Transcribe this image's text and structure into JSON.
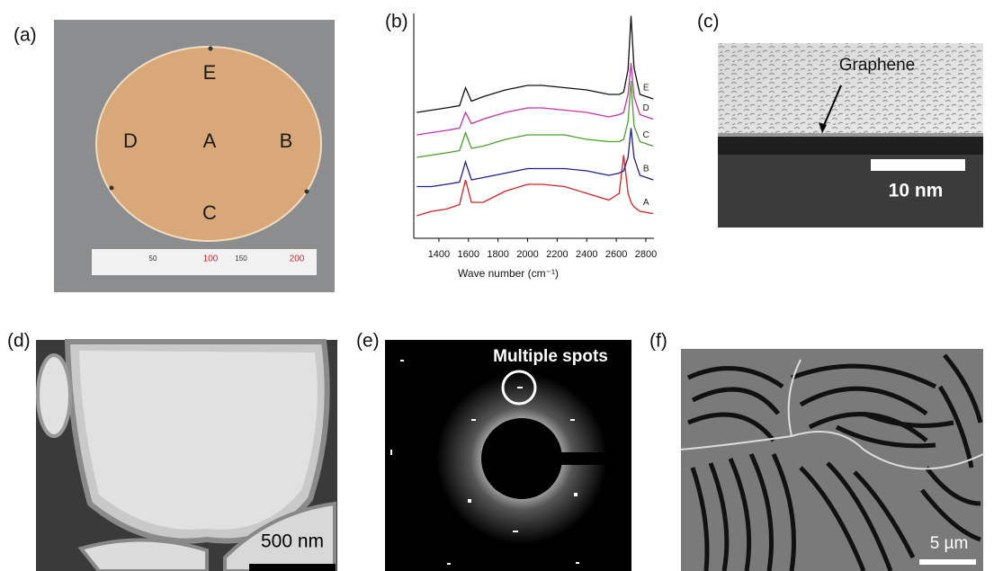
{
  "panel_labels": [
    "(a)",
    "(b)",
    "(c)",
    "(d)",
    "(e)",
    "(f)"
  ],
  "wafer": {
    "points": [
      "E",
      "D",
      "A",
      "B",
      "C"
    ],
    "ruler_labels": [
      "50",
      "100",
      "150",
      "200"
    ]
  },
  "chart_data": {
    "type": "line",
    "xlabel": "Wave number (cm⁻¹)",
    "x": [
      1250,
      1350,
      1450,
      1540,
      1580,
      1620,
      1700,
      1850,
      2000,
      2100,
      2250,
      2400,
      2550,
      2620,
      2650,
      2680,
      2700,
      2720,
      2760,
      2850
    ],
    "xlim": [
      1230,
      2855
    ],
    "xticks": [
      1400,
      1600,
      1800,
      2000,
      2200,
      2400,
      2600,
      2800
    ],
    "ylim": [
      0,
      100
    ],
    "series": [
      {
        "name": "A",
        "color": "#d62020",
        "values": [
          10,
          12,
          13,
          15,
          26,
          16,
          16,
          21,
          24,
          24,
          23,
          20,
          17,
          20,
          37,
          20,
          16,
          14,
          12,
          11
        ]
      },
      {
        "name": "B",
        "color": "#1f1f8f",
        "values": [
          23,
          23,
          24,
          25,
          34,
          26,
          27,
          29,
          31,
          31,
          31,
          30,
          28,
          29,
          30,
          36,
          49,
          36,
          28,
          26
        ]
      },
      {
        "name": "C",
        "color": "#4aa02c",
        "values": [
          36,
          37,
          38,
          39,
          47,
          40,
          41,
          44,
          46,
          46,
          46,
          44,
          43,
          43,
          44,
          52,
          70,
          50,
          43,
          41
        ]
      },
      {
        "name": "D",
        "color": "#c030b0",
        "values": [
          46,
          47,
          48,
          49,
          56,
          51,
          53,
          56,
          58,
          58,
          57,
          56,
          54,
          55,
          56,
          64,
          78,
          63,
          55,
          53
        ]
      },
      {
        "name": "E",
        "color": "#111111",
        "values": [
          56,
          57,
          58,
          59,
          67,
          61,
          63,
          66,
          68,
          68,
          67,
          66,
          64,
          64,
          65,
          75,
          99,
          76,
          64,
          62
        ]
      }
    ]
  },
  "tem": {
    "annotation": "Graphene",
    "scale_bar": "10 nm"
  },
  "diffraction": {
    "annotation": "Multiple spots"
  },
  "tem_low_mag": {
    "scale_bar": "500 nm"
  },
  "sem": {
    "scale_bar": "5 µm"
  }
}
